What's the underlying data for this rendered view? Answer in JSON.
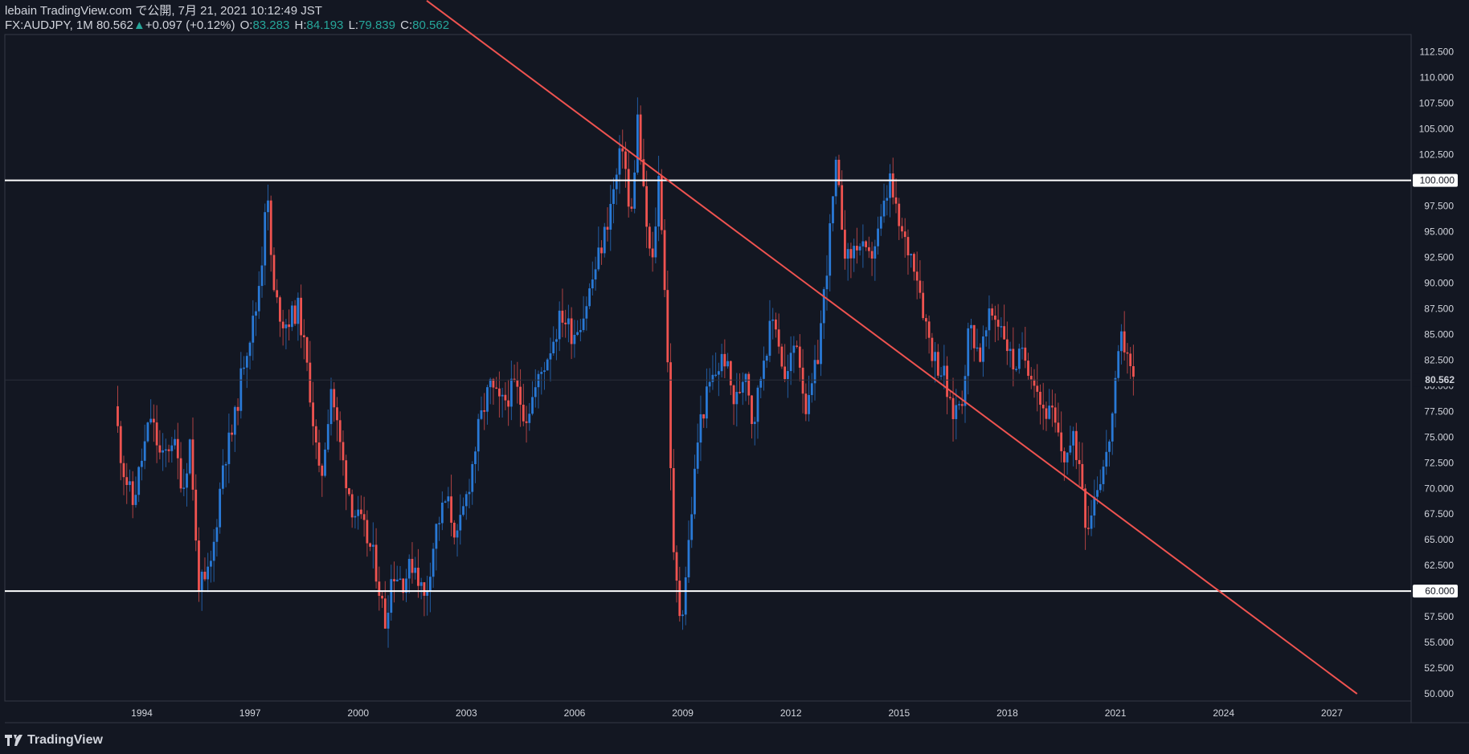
{
  "header": {
    "line1": "lebain TradingView.com で公開, 7月 21, 2021 10:12:49 JST",
    "symbol": "FX:AUDJPY, 1M",
    "last": "80.562",
    "change": "+0.097 (+0.12%)",
    "o_label": "O:",
    "o_value": "83.283",
    "h_label": "H:",
    "h_value": "84.193",
    "l_label": "L:",
    "l_value": "79.839",
    "c_label": "C:",
    "c_value": "80.562"
  },
  "footer": {
    "brand": "TradingView"
  },
  "colors": {
    "background": "#131722",
    "up": "#2979d6",
    "down": "#ef5350",
    "text": "#d1d4dc",
    "accent": "#26a69a",
    "level": "#ffffff",
    "trendline": "#ef5350"
  },
  "chart_data": {
    "type": "candlestick",
    "symbol": "FX:AUDJPY",
    "interval": "1M",
    "ylim": [
      49.3,
      114.2
    ],
    "xlim": [
      1990.2,
      2029.2
    ],
    "yticks": [
      "112.500",
      "110.000",
      "107.500",
      "105.000",
      "102.500",
      "100.000",
      "97.500",
      "95.000",
      "92.500",
      "90.000",
      "87.500",
      "85.000",
      "82.500",
      "80.000",
      "77.500",
      "75.000",
      "72.500",
      "70.000",
      "67.500",
      "65.000",
      "62.500",
      "60.000",
      "57.500",
      "55.000",
      "52.500",
      "50.000"
    ],
    "xticks": [
      "1994",
      "1997",
      "2000",
      "2003",
      "2006",
      "2009",
      "2012",
      "2015",
      "2018",
      "2021",
      "2024",
      "2027"
    ],
    "last_price_label": "80.562",
    "horizontal_levels": [
      {
        "value": 100.0,
        "label": "100.000"
      },
      {
        "value": 60.0,
        "label": "60.000"
      }
    ],
    "trendline": {
      "points": [
        [
          2001.9,
          117.5
        ],
        [
          2015.0,
          101.2
        ],
        [
          2025.2,
          60.0
        ],
        [
          2027.7,
          50.0
        ]
      ]
    },
    "price_path": [
      [
        1993.3,
        78
      ],
      [
        1993.5,
        72.5
      ],
      [
        1993.8,
        68.5
      ],
      [
        1994.0,
        72
      ],
      [
        1994.3,
        77
      ],
      [
        1994.6,
        72.5
      ],
      [
        1994.9,
        75
      ],
      [
        1995.2,
        70
      ],
      [
        1995.4,
        75
      ],
      [
        1995.6,
        61
      ],
      [
        1995.8,
        60.5
      ],
      [
        1996.0,
        63
      ],
      [
        1996.3,
        72.5
      ],
      [
        1996.6,
        76
      ],
      [
        1996.9,
        83
      ],
      [
        1997.2,
        87
      ],
      [
        1997.4,
        93
      ],
      [
        1997.5,
        100
      ],
      [
        1997.7,
        89
      ],
      [
        1998.0,
        86
      ],
      [
        1998.4,
        87.5
      ],
      [
        1998.7,
        80
      ],
      [
        1999.0,
        70
      ],
      [
        1999.3,
        80
      ],
      [
        1999.6,
        73
      ],
      [
        1999.9,
        68
      ],
      [
        2000.2,
        66
      ],
      [
        2000.5,
        63
      ],
      [
        2000.8,
        57
      ],
      [
        2001.0,
        62
      ],
      [
        2001.3,
        61
      ],
      [
        2001.6,
        63
      ],
      [
        2001.9,
        59
      ],
      [
        2002.2,
        66
      ],
      [
        2002.5,
        69
      ],
      [
        2002.8,
        65
      ],
      [
        2003.1,
        70
      ],
      [
        2003.4,
        76
      ],
      [
        2003.7,
        80
      ],
      [
        2004.0,
        78
      ],
      [
        2004.4,
        80
      ],
      [
        2004.7,
        77
      ],
      [
        2005.0,
        80
      ],
      [
        2005.4,
        84
      ],
      [
        2005.7,
        87
      ],
      [
        2006.0,
        85
      ],
      [
        2006.3,
        87
      ],
      [
        2006.6,
        91
      ],
      [
        2006.9,
        95
      ],
      [
        2007.2,
        100
      ],
      [
        2007.4,
        104
      ],
      [
        2007.6,
        95
      ],
      [
        2007.8,
        106
      ],
      [
        2008.0,
        97
      ],
      [
        2008.2,
        91
      ],
      [
        2008.4,
        101
      ],
      [
        2008.6,
        86
      ],
      [
        2008.8,
        63
      ],
      [
        2009.0,
        57
      ],
      [
        2009.2,
        64
      ],
      [
        2009.5,
        76
      ],
      [
        2009.8,
        80
      ],
      [
        2010.2,
        83
      ],
      [
        2010.5,
        78
      ],
      [
        2010.8,
        82
      ],
      [
        2011.0,
        76
      ],
      [
        2011.3,
        83
      ],
      [
        2011.6,
        87
      ],
      [
        2011.9,
        80
      ],
      [
        2012.2,
        85
      ],
      [
        2012.5,
        77
      ],
      [
        2012.8,
        83
      ],
      [
        2013.0,
        90
      ],
      [
        2013.3,
        101
      ],
      [
        2013.6,
        92
      ],
      [
        2013.9,
        94
      ],
      [
        2014.2,
        92
      ],
      [
        2014.5,
        95
      ],
      [
        2014.8,
        100
      ],
      [
        2015.0,
        96
      ],
      [
        2015.2,
        94
      ],
      [
        2015.5,
        92
      ],
      [
        2015.8,
        86
      ],
      [
        2016.0,
        83
      ],
      [
        2016.3,
        81
      ],
      [
        2016.5,
        77
      ],
      [
        2016.8,
        79
      ],
      [
        2017.0,
        86
      ],
      [
        2017.3,
        83
      ],
      [
        2017.6,
        87
      ],
      [
        2017.9,
        86
      ],
      [
        2018.2,
        82
      ],
      [
        2018.5,
        83
      ],
      [
        2018.8,
        81
      ],
      [
        2019.0,
        78
      ],
      [
        2019.3,
        77
      ],
      [
        2019.6,
        73
      ],
      [
        2019.9,
        74.5
      ],
      [
        2020.1,
        72
      ],
      [
        2020.25,
        66
      ],
      [
        2020.5,
        70
      ],
      [
        2020.8,
        73
      ],
      [
        2021.0,
        78
      ],
      [
        2021.2,
        84.5
      ],
      [
        2021.4,
        83.5
      ],
      [
        2021.5,
        80.56
      ]
    ]
  }
}
